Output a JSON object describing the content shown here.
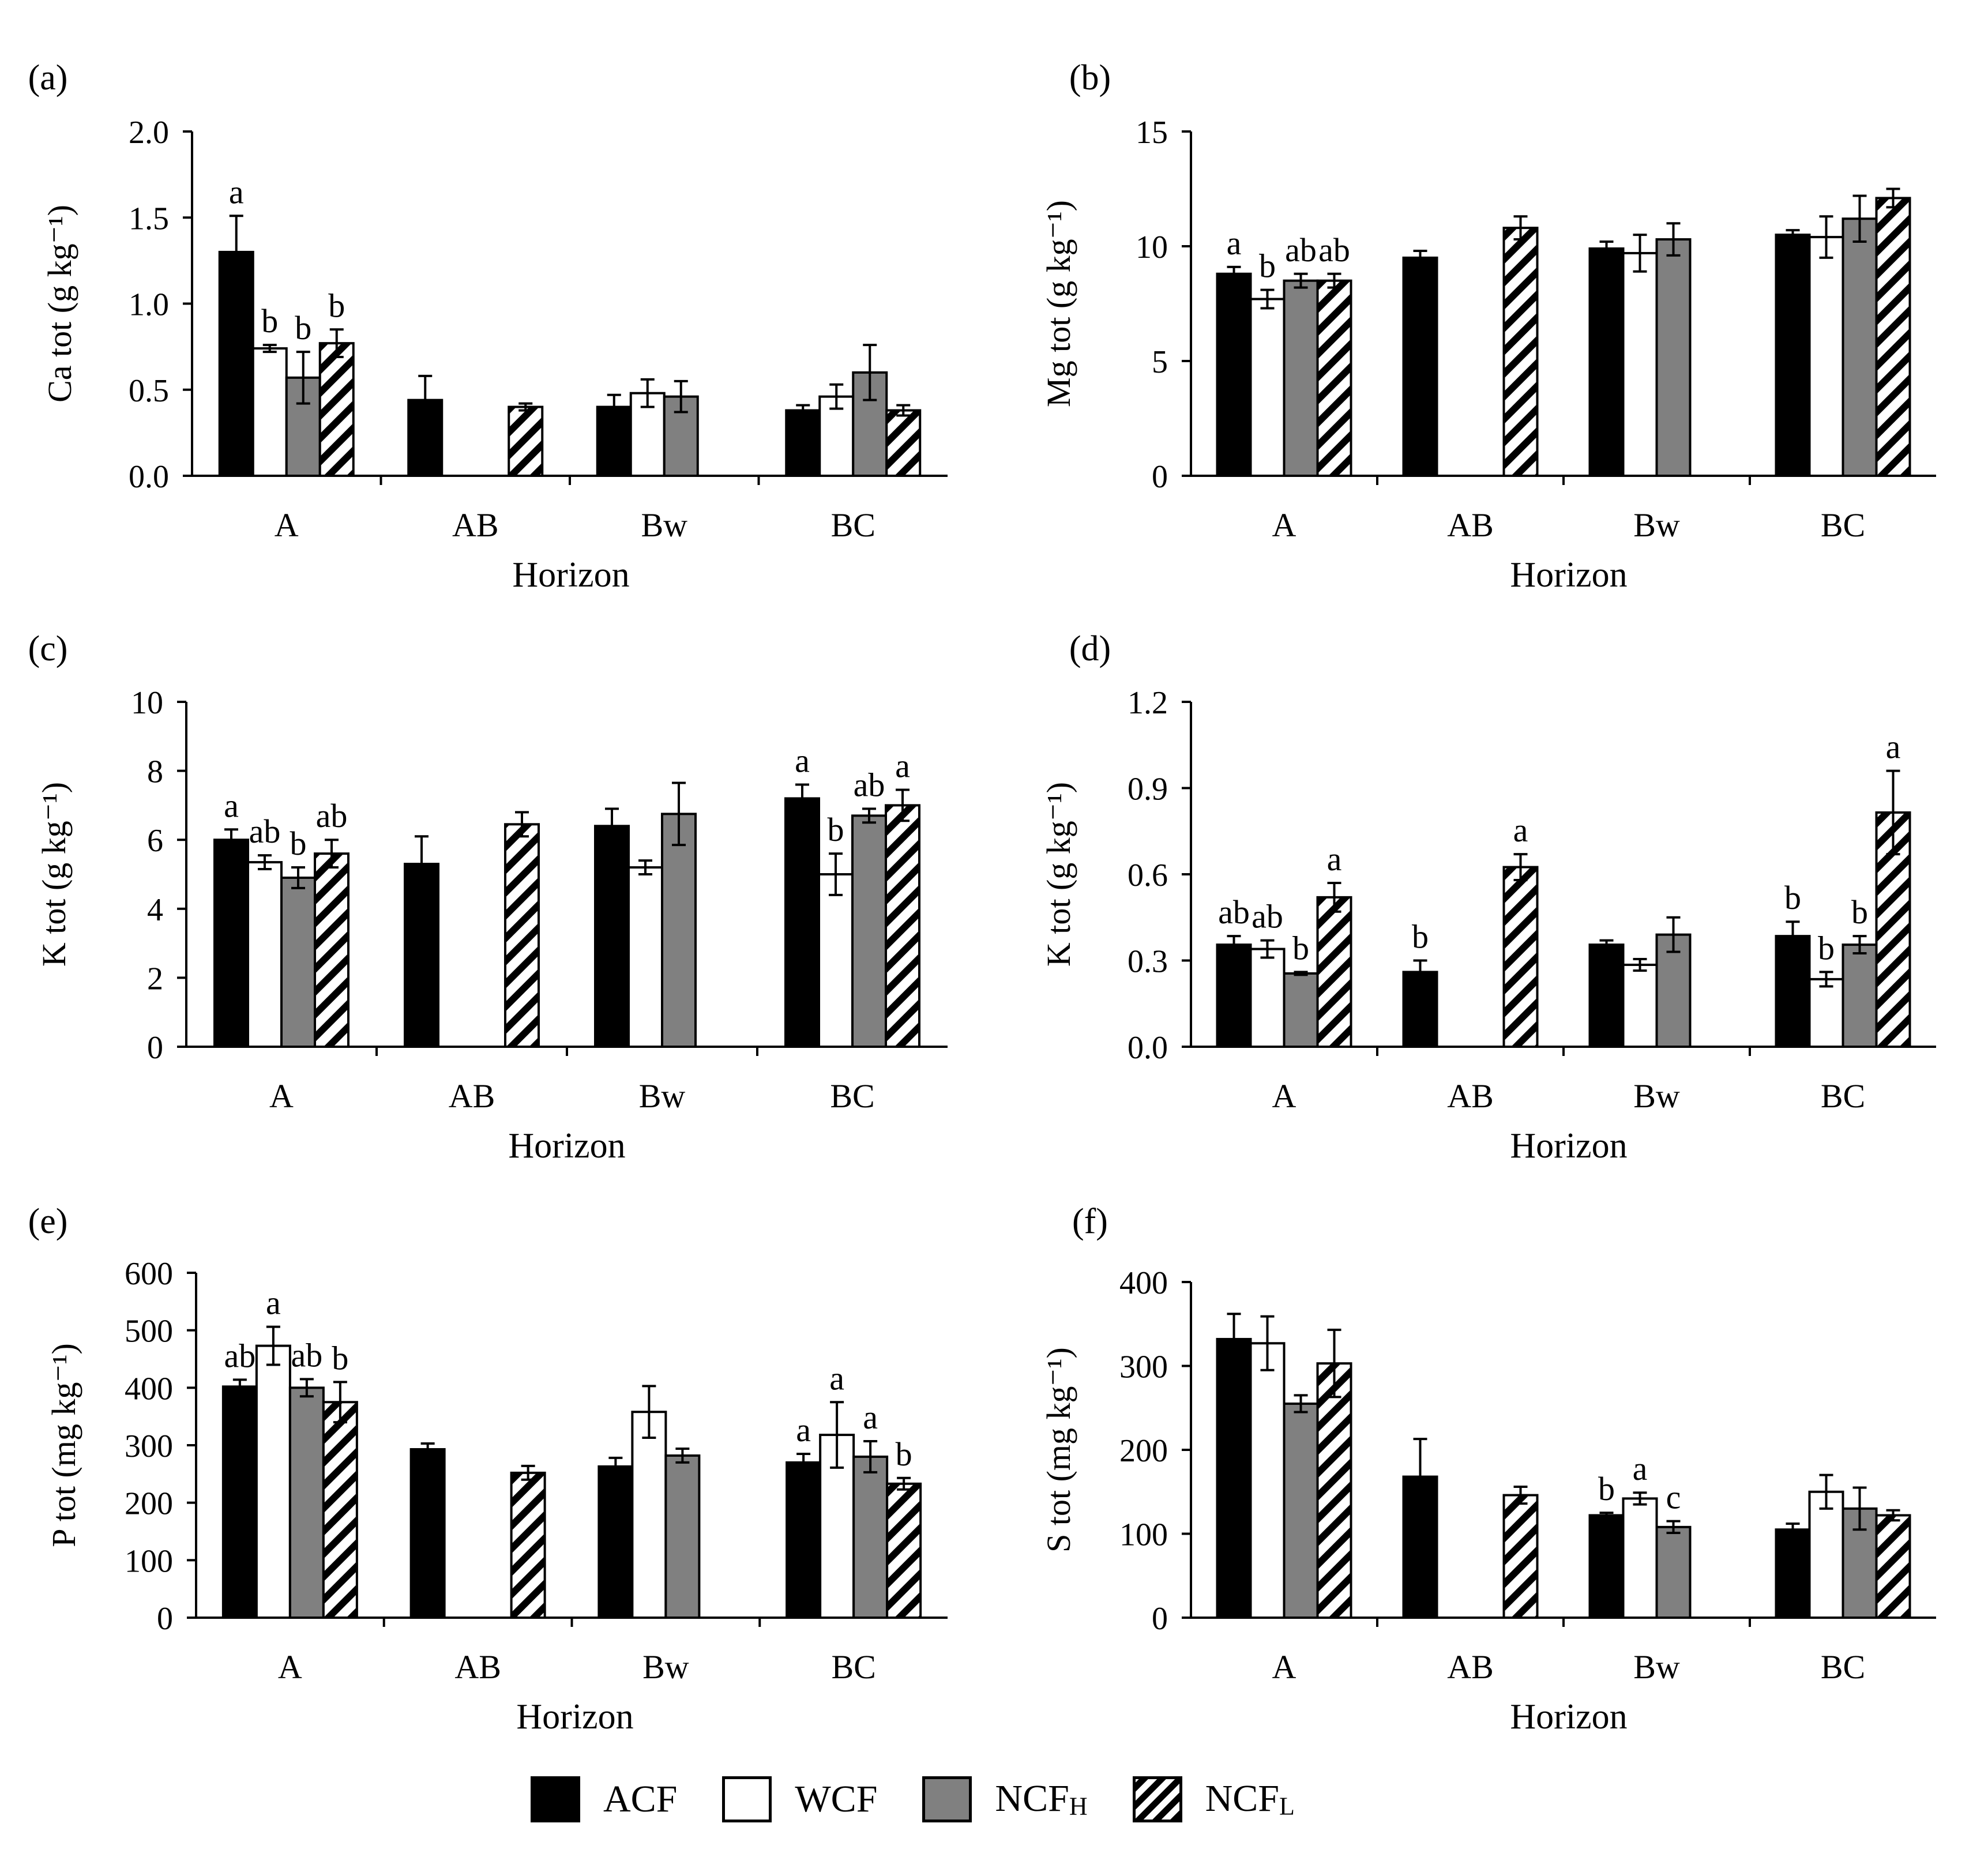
{
  "figure": {
    "series_names": [
      "ACF",
      "WCF",
      "NCF",
      "NCF"
    ],
    "series_subscripts": [
      "",
      "",
      "H",
      "L"
    ],
    "series_fills": [
      "#000000",
      "#ffffff",
      "#808080",
      "hatch"
    ],
    "colors": {
      "acf": "#000000",
      "wcf": "#ffffff",
      "ncfh": "#808080",
      "hatch": "#000000"
    }
  },
  "chart_data": [
    {
      "panel": "(a)",
      "type": "bar",
      "ylabel": "Ca tot (g kg⁻¹)",
      "xlabel": "Horizon",
      "categories": [
        "A",
        "AB",
        "Bw",
        "BC"
      ],
      "ylim": [
        0,
        2.0
      ],
      "ytick_labels": [
        "0.0",
        "0.5",
        "1.0",
        "1.5",
        "2.0"
      ],
      "series": [
        {
          "name": "ACF",
          "values": [
            1.3,
            0.44,
            0.4,
            0.38
          ],
          "errors": [
            0.21,
            0.14,
            0.07,
            0.03
          ],
          "labels": [
            "a",
            "",
            "",
            ""
          ]
        },
        {
          "name": "WCF",
          "values": [
            0.74,
            null,
            0.48,
            0.46
          ],
          "errors": [
            0.02,
            null,
            0.08,
            0.07
          ],
          "labels": [
            "b",
            "",
            "",
            ""
          ]
        },
        {
          "name": "NCFH",
          "values": [
            0.57,
            null,
            0.46,
            0.6
          ],
          "errors": [
            0.15,
            null,
            0.09,
            0.16
          ],
          "labels": [
            "b",
            "",
            "",
            ""
          ]
        },
        {
          "name": "NCFL",
          "values": [
            0.77,
            0.4,
            null,
            0.38
          ],
          "errors": [
            0.08,
            0.02,
            null,
            0.03
          ],
          "labels": [
            "b",
            "",
            "",
            ""
          ]
        }
      ]
    },
    {
      "panel": "(b)",
      "type": "bar",
      "ylabel": "Mg tot (g kg⁻¹)",
      "xlabel": "Horizon",
      "categories": [
        "A",
        "AB",
        "Bw",
        "BC"
      ],
      "ylim": [
        0,
        15
      ],
      "ytick_labels": [
        "0",
        "5",
        "10",
        "15"
      ],
      "series": [
        {
          "name": "ACF",
          "values": [
            8.8,
            9.5,
            9.9,
            10.5
          ],
          "errors": [
            0.3,
            0.3,
            0.3,
            0.2
          ],
          "labels": [
            "a",
            "",
            "",
            ""
          ]
        },
        {
          "name": "WCF",
          "values": [
            7.7,
            null,
            9.7,
            10.4
          ],
          "errors": [
            0.4,
            null,
            0.8,
            0.9
          ],
          "labels": [
            "b",
            "",
            "",
            ""
          ]
        },
        {
          "name": "NCFH",
          "values": [
            8.5,
            null,
            10.3,
            11.2
          ],
          "errors": [
            0.3,
            null,
            0.7,
            1.0
          ],
          "labels": [
            "ab",
            "",
            "",
            ""
          ]
        },
        {
          "name": "NCFL",
          "values": [
            8.5,
            10.8,
            null,
            12.1
          ],
          "errors": [
            0.3,
            0.5,
            null,
            0.4
          ],
          "labels": [
            "ab",
            "",
            "",
            ""
          ]
        }
      ]
    },
    {
      "panel": "(c)",
      "type": "bar",
      "ylabel": "K tot (g kg⁻¹)",
      "xlabel": "Horizon",
      "categories": [
        "A",
        "AB",
        "Bw",
        "BC"
      ],
      "ylim": [
        0,
        10
      ],
      "ytick_labels": [
        "0",
        "2",
        "4",
        "6",
        "8",
        "10"
      ],
      "series": [
        {
          "name": "ACF",
          "values": [
            6.0,
            5.3,
            6.4,
            7.2
          ],
          "errors": [
            0.3,
            0.8,
            0.5,
            0.4
          ],
          "labels": [
            "a",
            "",
            "",
            "a"
          ]
        },
        {
          "name": "WCF",
          "values": [
            5.35,
            null,
            5.2,
            5.0
          ],
          "errors": [
            0.2,
            null,
            0.2,
            0.6
          ],
          "labels": [
            "ab",
            "",
            "",
            "b"
          ]
        },
        {
          "name": "NCFH",
          "values": [
            4.9,
            null,
            6.75,
            6.7
          ],
          "errors": [
            0.3,
            null,
            0.9,
            0.2
          ],
          "labels": [
            "b",
            "",
            "",
            "ab"
          ]
        },
        {
          "name": "NCFL",
          "values": [
            5.6,
            6.45,
            null,
            7.0
          ],
          "errors": [
            0.4,
            0.35,
            null,
            0.45
          ],
          "labels": [
            "ab",
            "",
            "",
            "a"
          ]
        }
      ]
    },
    {
      "panel": "(d)",
      "type": "bar",
      "ylabel": "K tot (g kg⁻¹)",
      "xlabel": "Horizon",
      "categories": [
        "A",
        "AB",
        "Bw",
        "BC"
      ],
      "ylim": [
        0,
        1.2
      ],
      "ytick_labels": [
        "0.0",
        "0.3",
        "0.6",
        "0.9",
        "1.2"
      ],
      "series": [
        {
          "name": "ACF",
          "values": [
            0.355,
            0.26,
            0.355,
            0.385
          ],
          "errors": [
            0.03,
            0.04,
            0.015,
            0.05
          ],
          "labels": [
            "ab",
            "b",
            "",
            "b"
          ]
        },
        {
          "name": "WCF",
          "values": [
            0.34,
            null,
            0.285,
            0.235
          ],
          "errors": [
            0.03,
            null,
            0.02,
            0.025
          ],
          "labels": [
            "ab",
            "",
            "",
            "b"
          ]
        },
        {
          "name": "NCFH",
          "values": [
            0.255,
            null,
            0.39,
            0.355
          ],
          "errors": [
            0.005,
            null,
            0.06,
            0.03
          ],
          "labels": [
            "b",
            "",
            "",
            "b"
          ]
        },
        {
          "name": "NCFL",
          "values": [
            0.52,
            0.625,
            null,
            0.815
          ],
          "errors": [
            0.05,
            0.045,
            null,
            0.145
          ],
          "labels": [
            "a",
            "a",
            "",
            "a"
          ]
        }
      ]
    },
    {
      "panel": "(e)",
      "type": "bar",
      "ylabel": "P tot (mg kg⁻¹)",
      "xlabel": "Horizon",
      "categories": [
        "A",
        "AB",
        "Bw",
        "BC"
      ],
      "ylim": [
        0,
        600
      ],
      "ytick_labels": [
        "0",
        "100",
        "200",
        "300",
        "400",
        "500",
        "600"
      ],
      "series": [
        {
          "name": "ACF",
          "values": [
            402,
            293,
            263,
            270
          ],
          "errors": [
            12,
            10,
            15,
            15
          ],
          "labels": [
            "ab",
            "",
            "",
            "a"
          ]
        },
        {
          "name": "WCF",
          "values": [
            473,
            null,
            358,
            318
          ],
          "errors": [
            33,
            null,
            45,
            57
          ],
          "labels": [
            "a",
            "",
            "",
            "a"
          ]
        },
        {
          "name": "NCFH",
          "values": [
            400,
            null,
            282,
            280
          ],
          "errors": [
            15,
            null,
            12,
            27
          ],
          "labels": [
            "ab",
            "",
            "",
            "a"
          ]
        },
        {
          "name": "NCFL",
          "values": [
            375,
            252,
            null,
            233
          ],
          "errors": [
            35,
            12,
            null,
            10
          ],
          "labels": [
            "b",
            "",
            "",
            "b"
          ]
        }
      ]
    },
    {
      "panel": "(f)",
      "type": "bar",
      "ylabel": "S tot (mg kg⁻¹)",
      "xlabel": "Horizon",
      "categories": [
        "A",
        "AB",
        "Bw",
        "BC"
      ],
      "ylim": [
        0,
        400
      ],
      "ytick_labels": [
        "0",
        "100",
        "200",
        "300",
        "400"
      ],
      "series": [
        {
          "name": "ACF",
          "values": [
            332,
            168,
            122,
            105
          ],
          "errors": [
            30,
            45,
            3,
            7
          ],
          "labels": [
            "",
            "",
            "b",
            ""
          ]
        },
        {
          "name": "WCF",
          "values": [
            327,
            null,
            142,
            150
          ],
          "errors": [
            32,
            null,
            7,
            20
          ],
          "labels": [
            "",
            "",
            "a",
            ""
          ]
        },
        {
          "name": "NCFH",
          "values": [
            255,
            null,
            108,
            130
          ],
          "errors": [
            10,
            null,
            7,
            25
          ],
          "labels": [
            "",
            "",
            "c",
            ""
          ]
        },
        {
          "name": "NCFL",
          "values": [
            303,
            146,
            null,
            122
          ],
          "errors": [
            40,
            10,
            null,
            6
          ],
          "labels": [
            "",
            "",
            "",
            ""
          ]
        }
      ]
    }
  ]
}
